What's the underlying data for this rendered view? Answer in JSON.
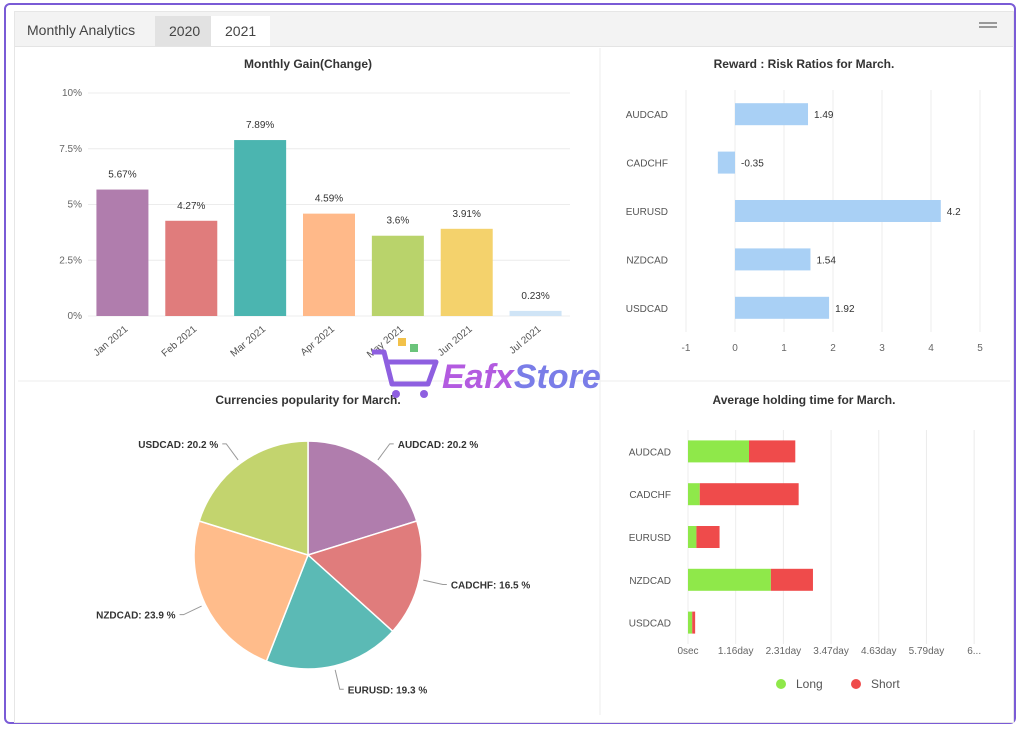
{
  "header": {
    "title": "Monthly Analytics",
    "tabs": [
      {
        "label": "2020",
        "active": true
      },
      {
        "label": "2021",
        "active": false
      }
    ]
  },
  "watermark": "EafxStore",
  "chart_data": [
    {
      "id": "monthly",
      "type": "bar",
      "title": "Monthly Gain(Change)",
      "categories": [
        "Jan 2021",
        "Feb 2021",
        "Mar 2021",
        "Apr 2021",
        "May 2021",
        "Jun 2021",
        "Jul 2021"
      ],
      "values": [
        5.67,
        4.27,
        7.89,
        4.59,
        3.6,
        3.91,
        0.23
      ],
      "value_labels": [
        "5.67%",
        "4.27%",
        "7.89%",
        "4.59%",
        "3.6%",
        "3.91%",
        "0.23%"
      ],
      "colors": [
        "#b07dad",
        "#e07c7c",
        "#4bb5b0",
        "#ffb989",
        "#b9d36b",
        "#f4d26c",
        "#cfe4f6"
      ],
      "yticks": [
        "0%",
        "2.5%",
        "5%",
        "7.5%",
        "10%"
      ],
      "ylim": [
        0,
        10
      ]
    },
    {
      "id": "reward",
      "type": "bar",
      "orientation": "horizontal",
      "title": "Reward : Risk Ratios for March.",
      "categories": [
        "AUDCAD",
        "CADCHF",
        "EURUSD",
        "NZDCAD",
        "USDCAD"
      ],
      "values": [
        1.49,
        -0.35,
        4.2,
        1.54,
        1.92
      ],
      "value_labels": [
        "1.49",
        "-0.35",
        "4.2",
        "1.54",
        "1.92"
      ],
      "color": "#a9d0f5",
      "xticks": [
        "-1",
        "0",
        "1",
        "2",
        "3",
        "4",
        "5"
      ],
      "xlim": [
        -1,
        5
      ]
    },
    {
      "id": "pie",
      "type": "pie",
      "title": "Currencies popularity for March.",
      "labels": [
        "AUDCAD: 20.2 %",
        "CADCHF: 16.5 %",
        "EURUSD: 19.3 %",
        "NZDCAD: 23.9 %",
        "USDCAD: 20.2 %"
      ],
      "values": [
        20.2,
        16.5,
        19.3,
        23.9,
        20.2
      ],
      "colors": [
        "#b07dad",
        "#e07c7c",
        "#5bbab5",
        "#ffbc8b",
        "#c3d46e"
      ]
    },
    {
      "id": "holding",
      "type": "bar",
      "orientation": "horizontal",
      "stacked": true,
      "title": "Average holding time for March.",
      "categories": [
        "AUDCAD",
        "CADCHF",
        "EURUSD",
        "NZDCAD",
        "USDCAD"
      ],
      "series": [
        {
          "name": "Long",
          "color": "#8fe84a",
          "values": [
            1.45,
            0.28,
            0.2,
            1.97,
            0.1
          ]
        },
        {
          "name": "Short",
          "color": "#ef4b4b",
          "values": [
            1.1,
            2.35,
            0.55,
            1.0,
            0.07
          ]
        }
      ],
      "xticks": [
        "0sec",
        "1.16day",
        "2.31day",
        "3.47day",
        "4.63day",
        "5.79day",
        "6..."
      ],
      "xlim": [
        0,
        3.47
      ]
    }
  ]
}
